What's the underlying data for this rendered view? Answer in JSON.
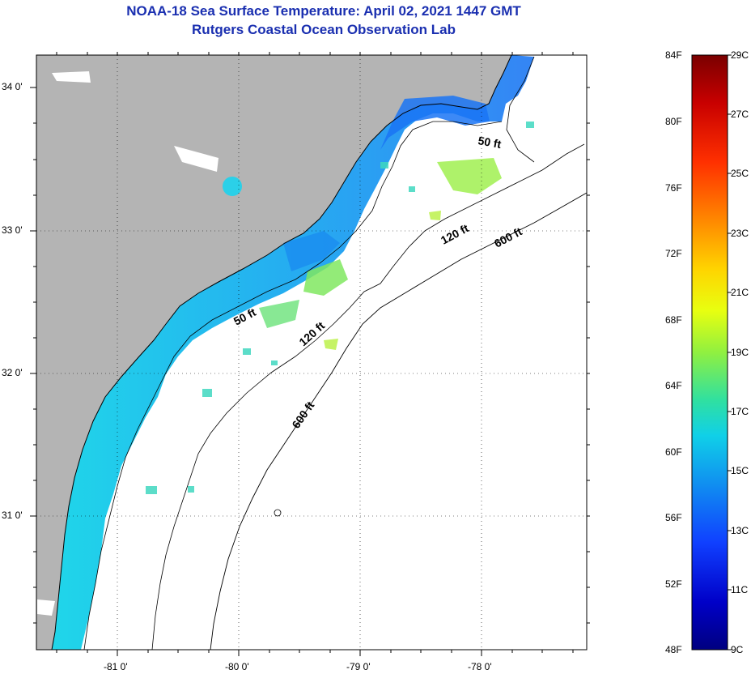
{
  "title": {
    "line1": "NOAA-18 Sea Surface Temperature:  April 02, 2021 1447 GMT",
    "line2": "Rutgers Coastal Ocean Observation Lab"
  },
  "map": {
    "lat_labels": [
      "34 0'",
      "33 0'",
      "32 0'",
      "31 0'"
    ],
    "lon_labels": [
      "-81 0'",
      "-80 0'",
      "-79 0'",
      "-78 0'"
    ],
    "contour_labels": [
      {
        "text": "50 ft"
      },
      {
        "text": "50 ft"
      },
      {
        "text": "120 ft"
      },
      {
        "text": "120 ft"
      },
      {
        "text": "600 ft"
      },
      {
        "text": "600 ft"
      }
    ],
    "colors": {
      "land": "#b4b4b4",
      "water": "#ffffff",
      "coast": "#000000"
    }
  },
  "colorbar": {
    "fahrenheit_labels": [
      "84F",
      "80F",
      "76F",
      "72F",
      "68F",
      "64F",
      "60F",
      "56F",
      "52F",
      "48F"
    ],
    "celsius_labels": [
      "29C",
      "27C",
      "25C",
      "23C",
      "21C",
      "19C",
      "17C",
      "15C",
      "13C",
      "11C",
      "9C"
    ],
    "gradient": [
      "#7a0000",
      "#c80000",
      "#ff3000",
      "#ff8a00",
      "#ffd400",
      "#e8ff10",
      "#90f040",
      "#30e0a0",
      "#10d0e8",
      "#1090f0",
      "#1040ff",
      "#0000c8",
      "#000080"
    ]
  }
}
